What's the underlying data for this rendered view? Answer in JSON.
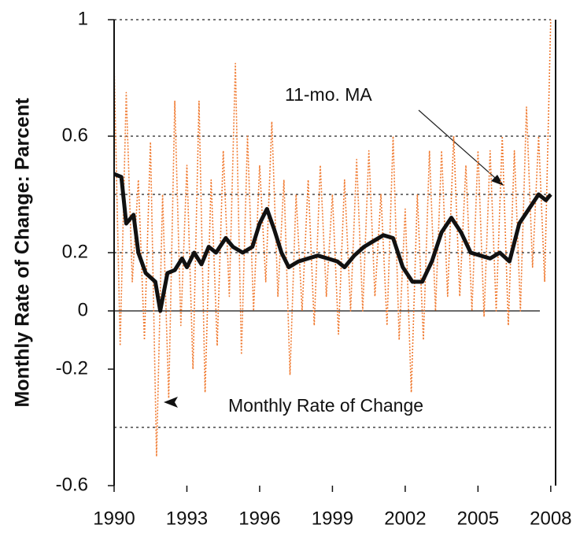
{
  "chart_data": {
    "type": "line",
    "y_label": "Monthly Rate of Change: Parcent",
    "annotations": [
      "11-mo. MA",
      "Monthly Rate of Change"
    ],
    "xlim": [
      1990,
      2008.2
    ],
    "xticks": [
      1990,
      1993,
      1996,
      1999,
      2002,
      2005,
      2008
    ],
    "ylim": [
      -0.6,
      1
    ],
    "yticks": [
      -0.6,
      -0.2,
      0,
      0.2,
      0.6,
      1
    ],
    "gridlines": [
      -0.4,
      0.2,
      0.4,
      0.6,
      1
    ],
    "series": [
      {
        "name": "Monthly Rate of Change",
        "color": "#f07a30",
        "style": "dotted",
        "x": [
          1990.0,
          1990.25,
          1990.5,
          1990.75,
          1991.0,
          1991.25,
          1991.5,
          1991.75,
          1992.0,
          1992.25,
          1992.5,
          1992.75,
          1993.0,
          1993.25,
          1993.5,
          1993.75,
          1994.0,
          1994.25,
          1994.5,
          1994.75,
          1995.0,
          1995.25,
          1995.5,
          1995.75,
          1996.0,
          1996.25,
          1996.5,
          1996.75,
          1997.0,
          1997.25,
          1997.5,
          1997.75,
          1998.0,
          1998.25,
          1998.5,
          1998.75,
          1999.0,
          1999.25,
          1999.5,
          1999.75,
          2000.0,
          2000.25,
          2000.5,
          2000.75,
          2001.0,
          2001.25,
          2001.5,
          2001.75,
          2002.0,
          2002.25,
          2002.5,
          2002.75,
          2003.0,
          2003.25,
          2003.5,
          2003.75,
          2004.0,
          2004.25,
          2004.5,
          2004.75,
          2005.0,
          2005.25,
          2005.5,
          2005.75,
          2006.0,
          2006.25,
          2006.5,
          2006.75,
          2007.0,
          2007.25,
          2007.5,
          2007.75,
          2008.0
        ],
        "values": [
          0.85,
          -0.12,
          0.75,
          0.1,
          0.45,
          -0.1,
          0.58,
          -0.5,
          0.4,
          -0.3,
          0.72,
          -0.05,
          0.5,
          -0.2,
          0.72,
          -0.28,
          0.45,
          -0.12,
          0.55,
          0.05,
          0.85,
          -0.15,
          0.6,
          0.0,
          0.5,
          0.1,
          0.65,
          0.05,
          0.45,
          -0.22,
          0.4,
          0.0,
          0.45,
          -0.05,
          0.5,
          0.05,
          0.4,
          -0.08,
          0.45,
          0.0,
          0.52,
          0.0,
          0.55,
          0.05,
          0.4,
          -0.05,
          0.6,
          -0.1,
          0.35,
          -0.28,
          0.4,
          -0.1,
          0.55,
          0.0,
          0.55,
          0.05,
          0.6,
          0.05,
          0.5,
          0.0,
          0.55,
          -0.02,
          0.55,
          0.0,
          0.6,
          -0.05,
          0.55,
          0.0,
          0.7,
          0.15,
          0.6,
          0.1,
          1.0
        ]
      },
      {
        "name": "11-mo. MA",
        "color": "#111111",
        "style": "solid",
        "x": [
          1990.0,
          1990.3,
          1990.5,
          1990.8,
          1991.0,
          1991.3,
          1991.7,
          1991.9,
          1992.2,
          1992.5,
          1992.8,
          1993.0,
          1993.3,
          1993.6,
          1993.9,
          1994.2,
          1994.6,
          1994.9,
          1995.3,
          1995.7,
          1996.0,
          1996.3,
          1996.6,
          1996.9,
          1997.2,
          1997.6,
          1998.0,
          1998.4,
          1998.8,
          1999.2,
          1999.5,
          1999.9,
          2000.3,
          2000.7,
          2001.1,
          2001.5,
          2001.9,
          2002.3,
          2002.7,
          2003.1,
          2003.5,
          2003.9,
          2004.3,
          2004.7,
          2005.1,
          2005.5,
          2005.9,
          2006.3,
          2006.7,
          2007.1,
          2007.5,
          2007.8,
          2008.0
        ],
        "values": [
          0.47,
          0.46,
          0.3,
          0.33,
          0.2,
          0.13,
          0.1,
          0.0,
          0.13,
          0.14,
          0.18,
          0.15,
          0.2,
          0.16,
          0.22,
          0.2,
          0.25,
          0.22,
          0.2,
          0.22,
          0.3,
          0.35,
          0.28,
          0.2,
          0.15,
          0.17,
          0.18,
          0.19,
          0.18,
          0.17,
          0.15,
          0.19,
          0.22,
          0.24,
          0.26,
          0.25,
          0.15,
          0.1,
          0.1,
          0.17,
          0.27,
          0.32,
          0.27,
          0.2,
          0.19,
          0.18,
          0.2,
          0.17,
          0.3,
          0.35,
          0.4,
          0.38,
          0.4
        ]
      }
    ]
  }
}
